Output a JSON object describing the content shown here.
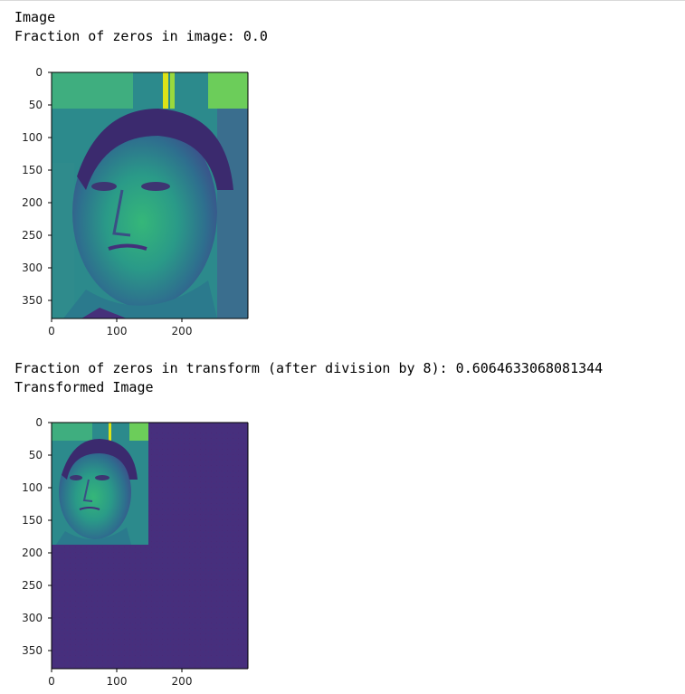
{
  "output": {
    "line1": "Image",
    "line2": "Fraction of zeros in image: 0.0",
    "line3": "Fraction of zeros in transform (after division by 8): 0.6064633068081344",
    "line4": "Transformed Image"
  },
  "colors": {
    "viridis_dark": "#46307a",
    "viridis_mid": "#2a8c8b",
    "viridis_light": "#5ec962",
    "viridis_bright": "#c9e020"
  },
  "plots": [
    {
      "name": "image",
      "x_ticks": [
        "0",
        "100",
        "200"
      ],
      "y_ticks": [
        "0",
        "50",
        "100",
        "150",
        "200",
        "250",
        "300",
        "350"
      ]
    },
    {
      "name": "transformed",
      "x_ticks": [
        "0",
        "100",
        "200"
      ],
      "y_ticks": [
        "0",
        "50",
        "100",
        "150",
        "200",
        "250",
        "300",
        "350"
      ]
    }
  ]
}
